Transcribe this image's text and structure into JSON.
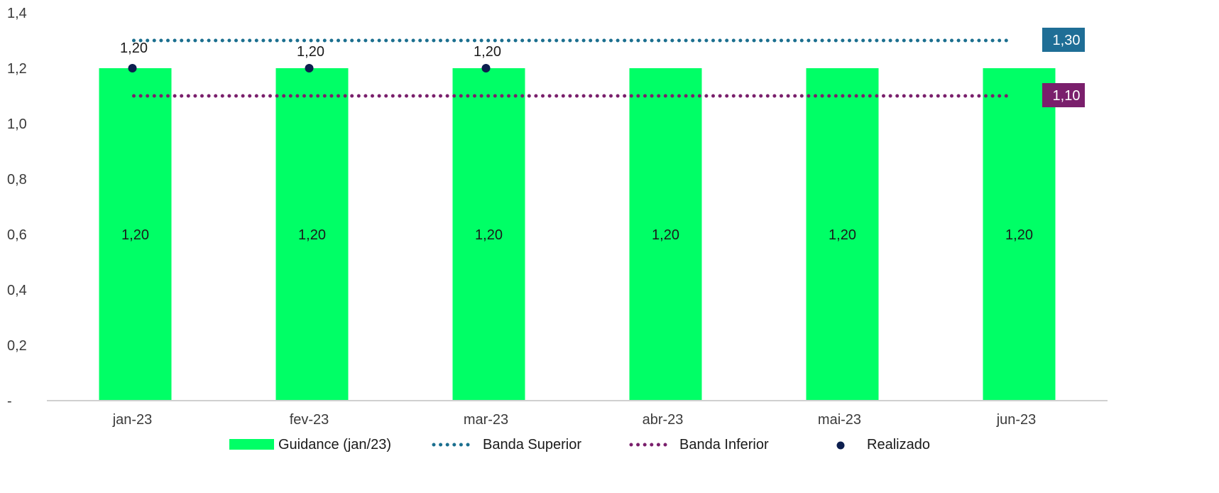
{
  "chart_data": {
    "type": "bar",
    "categories": [
      "jan-23",
      "fev-23",
      "mar-23",
      "abr-23",
      "mai-23",
      "jun-23"
    ],
    "ylim": [
      0,
      1.4
    ],
    "y_ticks": [
      "-",
      "0,2",
      "0,4",
      "0,6",
      "0,8",
      "1,0",
      "1,2",
      "1,4"
    ],
    "y_tick_values": [
      0,
      0.2,
      0.4,
      0.6,
      0.8,
      1.0,
      1.2,
      1.4
    ],
    "grid": false,
    "legend_position": "bottom",
    "series": [
      {
        "name": "Guidance (jan/23)",
        "kind": "bar",
        "color": "#00FF66",
        "values": [
          1.2,
          1.2,
          1.2,
          1.2,
          1.2,
          1.2
        ],
        "labels": [
          "1,20",
          "1,20",
          "1,20",
          "1,20",
          "1,20",
          "1,20"
        ]
      },
      {
        "name": "Banda Superior",
        "kind": "dotted-line",
        "color": "#1B6F8F",
        "values": [
          1.3,
          1.3,
          1.3,
          1.3,
          1.3,
          1.3
        ],
        "end_label": "1,30",
        "end_label_color": "#1F6E96"
      },
      {
        "name": "Banda Inferior",
        "kind": "dotted-line",
        "color": "#7A1F6C",
        "values": [
          1.1,
          1.1,
          1.1,
          1.1,
          1.1,
          1.1
        ],
        "end_label": "1,10",
        "end_label_color": "#7A1F6C"
      },
      {
        "name": "Realizado",
        "kind": "scatter",
        "color": "#0D1F4F",
        "values": [
          1.2,
          1.2,
          1.2,
          null,
          null,
          null
        ],
        "labels": [
          "1,20",
          "1,20",
          "1,20",
          null,
          null,
          null
        ]
      }
    ]
  }
}
